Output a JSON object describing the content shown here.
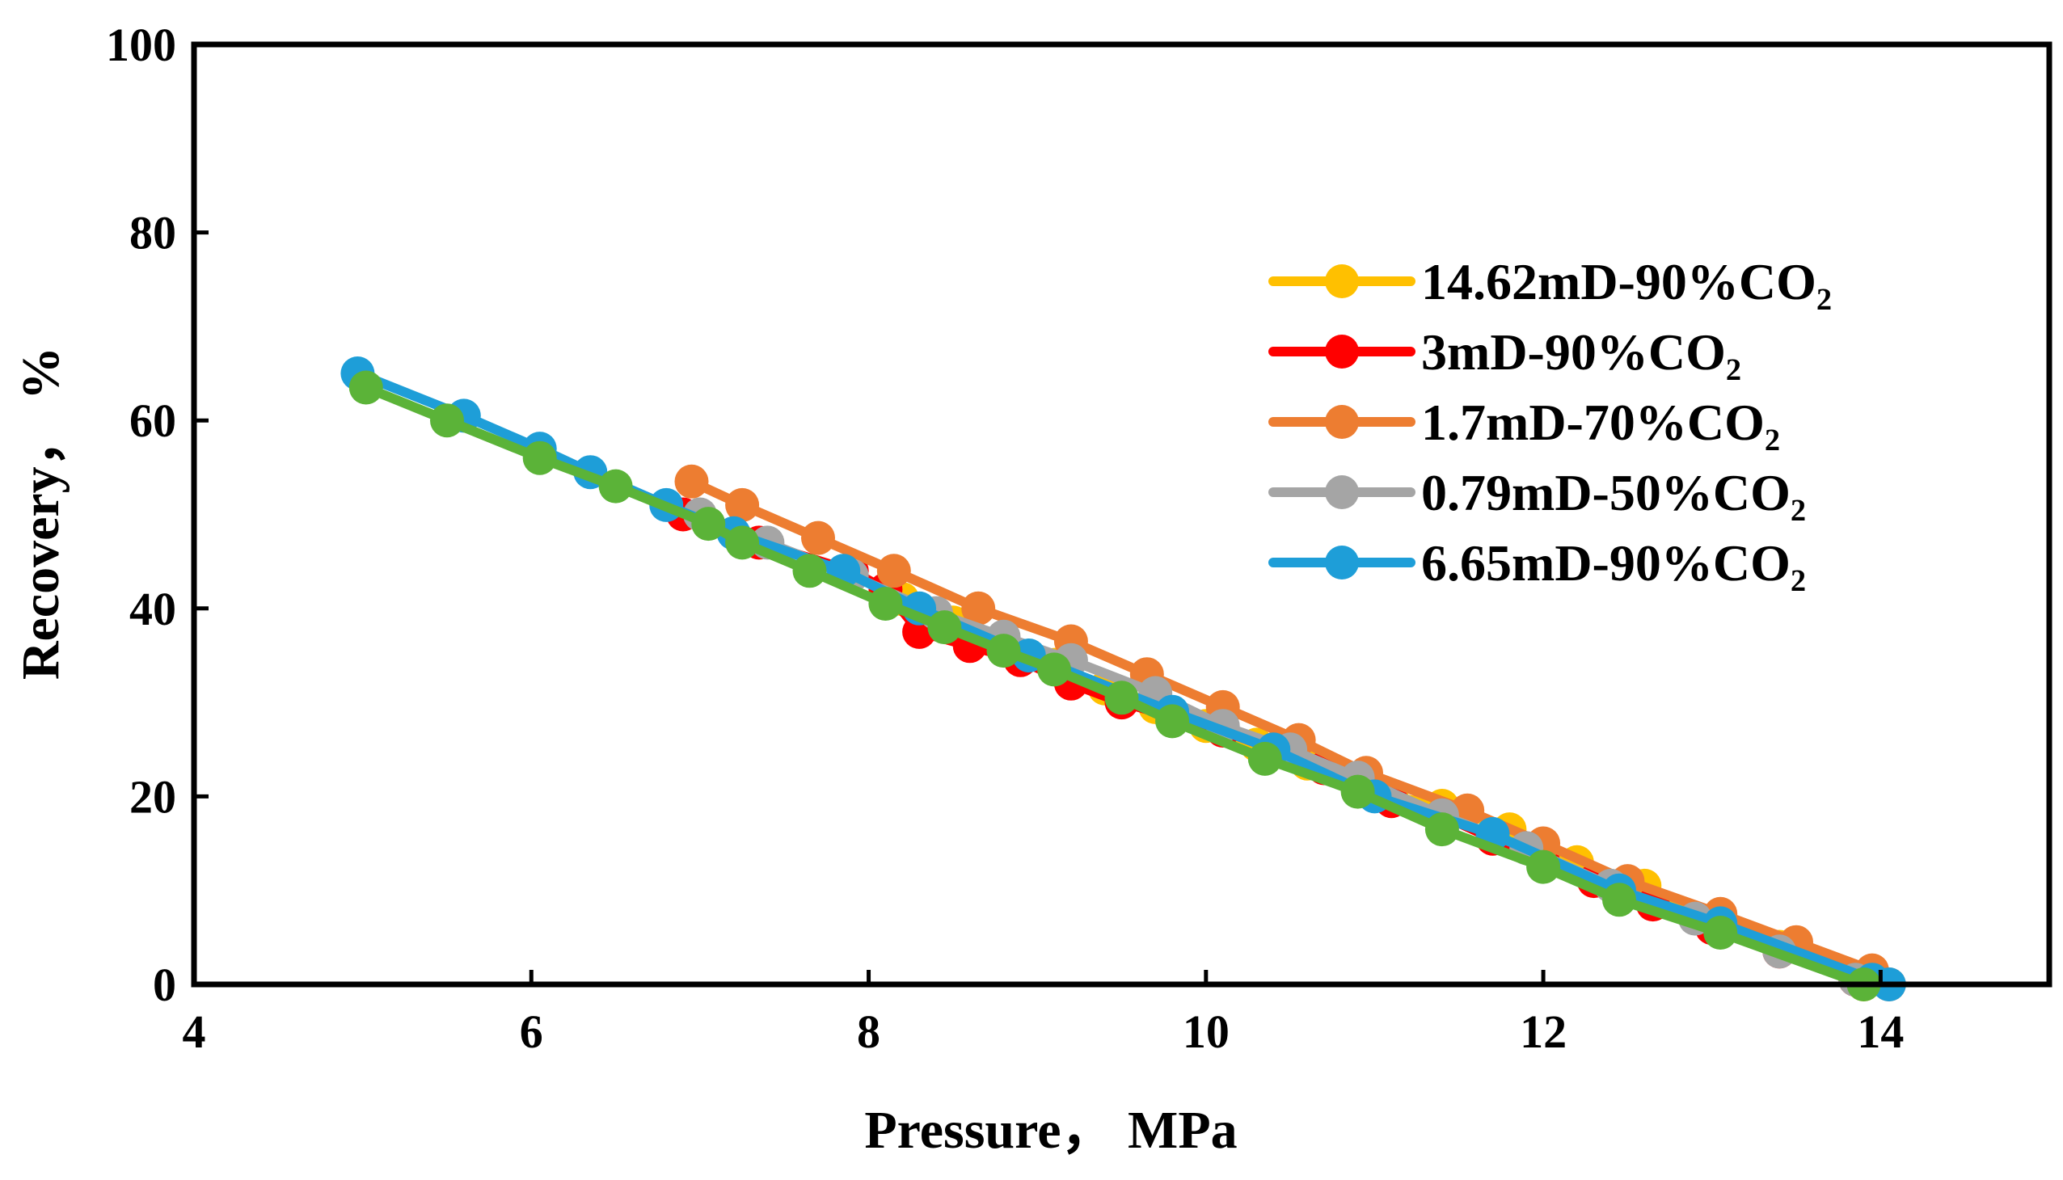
{
  "chart_data": {
    "type": "line",
    "title": "",
    "xlabel": "Pressure，  MPa",
    "ylabel": "Recovery，  %",
    "xlim": [
      4,
      15
    ],
    "ylim": [
      0,
      100
    ],
    "xticks": [
      4,
      6,
      8,
      10,
      12,
      14
    ],
    "yticks": [
      0,
      20,
      40,
      60,
      80,
      100
    ],
    "xtick_labels": [
      "4",
      "6",
      "8",
      "10",
      "12",
      "14"
    ],
    "ytick_labels": [
      "0",
      "20",
      "40",
      "60",
      "80",
      "100"
    ],
    "grid": false,
    "legend_position": "right",
    "series": [
      {
        "name": "14.62mD-90%CO₂",
        "color": "#FFC000",
        "x": [
          8.2,
          8.5,
          8.8,
          9.1,
          9.4,
          9.7,
          10.0,
          10.3,
          10.6,
          10.9,
          11.1,
          11.4,
          11.8,
          12.2,
          12.6,
          13.0,
          13.4,
          13.9
        ],
        "y": [
          41.0,
          38.5,
          36.5,
          34.0,
          31.5,
          29.5,
          27.5,
          25.5,
          23.5,
          21.5,
          20.0,
          19.0,
          16.5,
          13.0,
          10.5,
          6.5,
          4.0,
          0.0
        ]
      },
      {
        "name": "3mD-90%CO₂",
        "color": "#FF0000",
        "x": [
          6.9,
          7.35,
          7.9,
          8.1,
          8.3,
          8.6,
          8.9,
          9.2,
          9.5,
          9.8,
          10.1,
          10.4,
          10.7,
          11.1,
          11.4,
          11.7,
          12.0,
          12.3,
          12.65,
          13.0,
          13.4,
          13.85
        ],
        "y": [
          50.0,
          47.0,
          44.0,
          42.0,
          37.5,
          36.0,
          34.5,
          32.0,
          30.0,
          28.5,
          27.0,
          25.0,
          23.0,
          19.5,
          18.0,
          15.5,
          13.0,
          11.0,
          8.5,
          6.0,
          3.5,
          0.5
        ]
      },
      {
        "name": "1.7mD-70%CO₂",
        "color": "#ED7D31",
        "x": [
          6.95,
          7.25,
          7.7,
          8.15,
          8.65,
          9.2,
          9.65,
          10.1,
          10.55,
          10.95,
          11.55,
          12.0,
          12.5,
          13.05,
          13.5,
          13.95,
          14.05
        ],
        "y": [
          53.5,
          51.0,
          47.5,
          44.0,
          40.0,
          36.5,
          33.0,
          29.5,
          26.0,
          22.5,
          18.5,
          15.0,
          11.0,
          7.5,
          4.5,
          1.5,
          0.0
        ]
      },
      {
        "name": "0.79mD-50%CO₂",
        "color": "#A5A5A5",
        "x": [
          7.0,
          7.4,
          7.9,
          8.4,
          8.8,
          9.2,
          9.7,
          10.1,
          10.5,
          10.9,
          11.4,
          11.9,
          12.4,
          12.9,
          13.4,
          13.85
        ],
        "y": [
          50.0,
          47.0,
          43.5,
          39.5,
          37.0,
          34.5,
          31.0,
          27.5,
          25.0,
          22.0,
          18.0,
          14.5,
          10.5,
          7.0,
          3.5,
          0.5
        ]
      },
      {
        "name": "6.65mD-90%CO₂",
        "color": "#1E9ED8",
        "x": [
          4.97,
          5.6,
          6.05,
          6.35,
          6.8,
          7.2,
          7.85,
          8.3,
          8.95,
          9.8,
          10.4,
          11.0,
          11.7,
          12.45,
          13.05,
          13.95,
          14.05
        ],
        "y": [
          65.0,
          60.5,
          57.0,
          54.5,
          51.0,
          48.0,
          44.0,
          40.0,
          35.0,
          29.0,
          25.0,
          20.0,
          16.0,
          10.0,
          6.5,
          0.5,
          0.0
        ]
      },
      {
        "name": "",
        "color": "#5BB338",
        "x": [
          5.02,
          5.5,
          6.05,
          6.5,
          7.05,
          7.25,
          7.65,
          8.1,
          8.45,
          8.8,
          9.1,
          9.5,
          9.8,
          10.35,
          10.9,
          11.4,
          12.0,
          12.45,
          13.05,
          13.9
        ],
        "y": [
          63.5,
          60.0,
          56.0,
          53.0,
          49.0,
          47.0,
          44.0,
          40.5,
          38.0,
          35.5,
          33.5,
          30.5,
          28.0,
          24.0,
          20.5,
          16.5,
          12.5,
          9.0,
          5.5,
          0.0
        ]
      }
    ]
  }
}
